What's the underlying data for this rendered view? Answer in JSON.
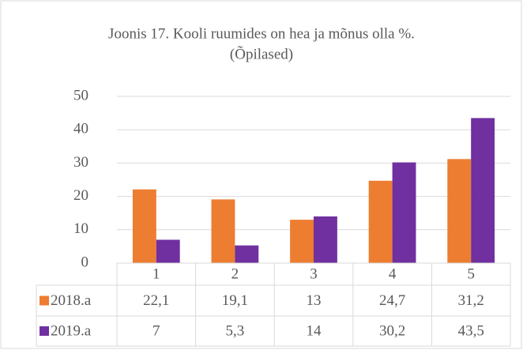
{
  "chart_data": {
    "type": "bar",
    "title": "Joonis 17. Kooli ruumides on hea ja mõnus olla %.",
    "subtitle": "(Õpilased)",
    "categories": [
      "1",
      "2",
      "3",
      "4",
      "5"
    ],
    "series": [
      {
        "name": "2018.a",
        "color": "#ed7d31",
        "values": [
          22.1,
          19.1,
          13,
          24.7,
          31.2
        ],
        "value_labels": [
          "22,1",
          "19,1",
          "13",
          "24,7",
          "31,2"
        ]
      },
      {
        "name": "2019.a",
        "color": "#7030a0",
        "values": [
          7,
          5.3,
          14,
          30.2,
          43.5
        ],
        "value_labels": [
          "7",
          "5,3",
          "14",
          "30,2",
          "43,5"
        ]
      }
    ],
    "ylim": [
      0,
      50
    ],
    "yticks": [
      0,
      10,
      20,
      30,
      40,
      50
    ],
    "grid": true,
    "legend": "table"
  }
}
